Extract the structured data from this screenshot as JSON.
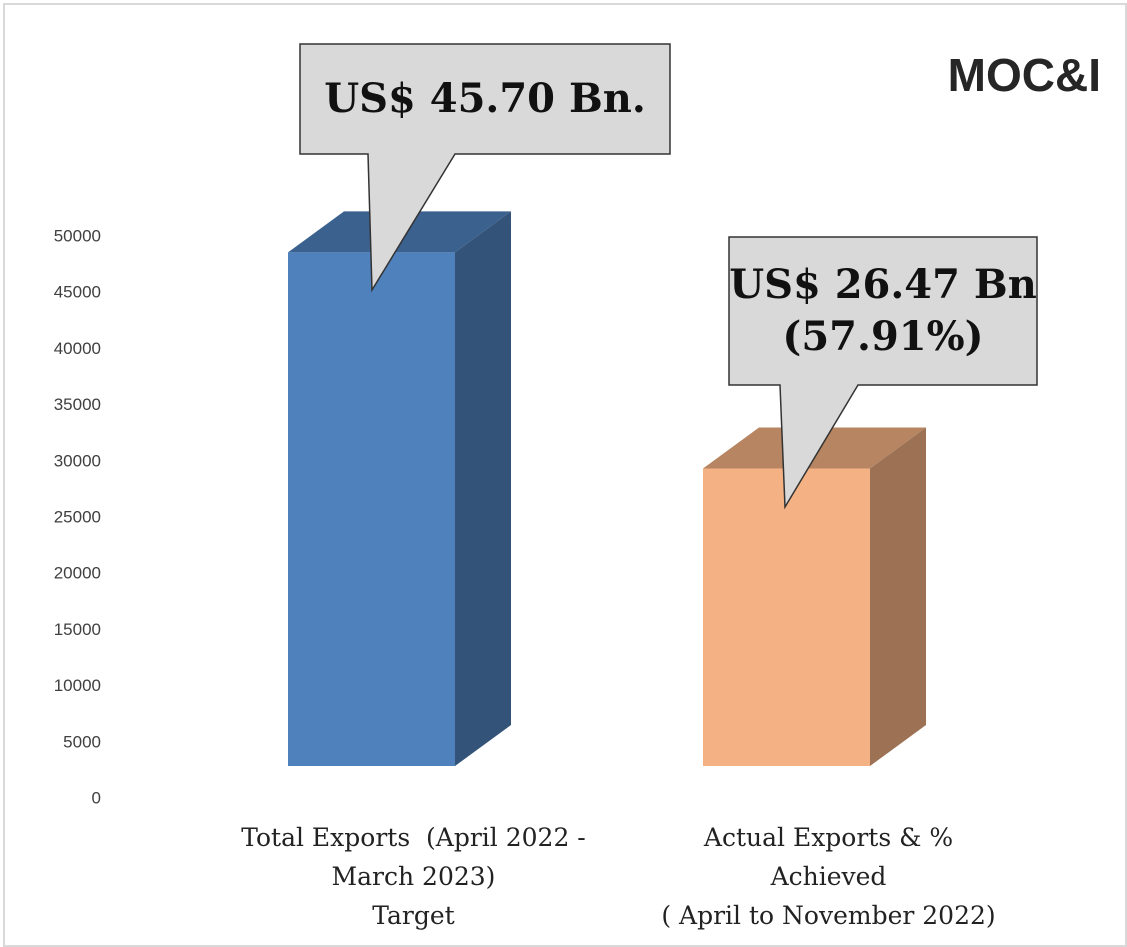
{
  "chart_data": {
    "type": "bar3d",
    "title": "MOC&I",
    "categories": [
      "Total Exports  (April 2022 -\nMarch 2023)\nTarget",
      "Actual Exports & %\nAchieved\n( April to November 2022)"
    ],
    "values": [
      45700,
      26470
    ],
    "value_labels": [
      "US$ 45.70 Bn.",
      "US$ 26.47 Bn\n(57.91%)"
    ],
    "colors": [
      "#4f81bd",
      "#f4b183"
    ],
    "ylim": [
      0,
      50000
    ],
    "yticks": [
      0,
      5000,
      10000,
      15000,
      20000,
      25000,
      30000,
      35000,
      40000,
      45000,
      50000
    ],
    "grid": false
  }
}
